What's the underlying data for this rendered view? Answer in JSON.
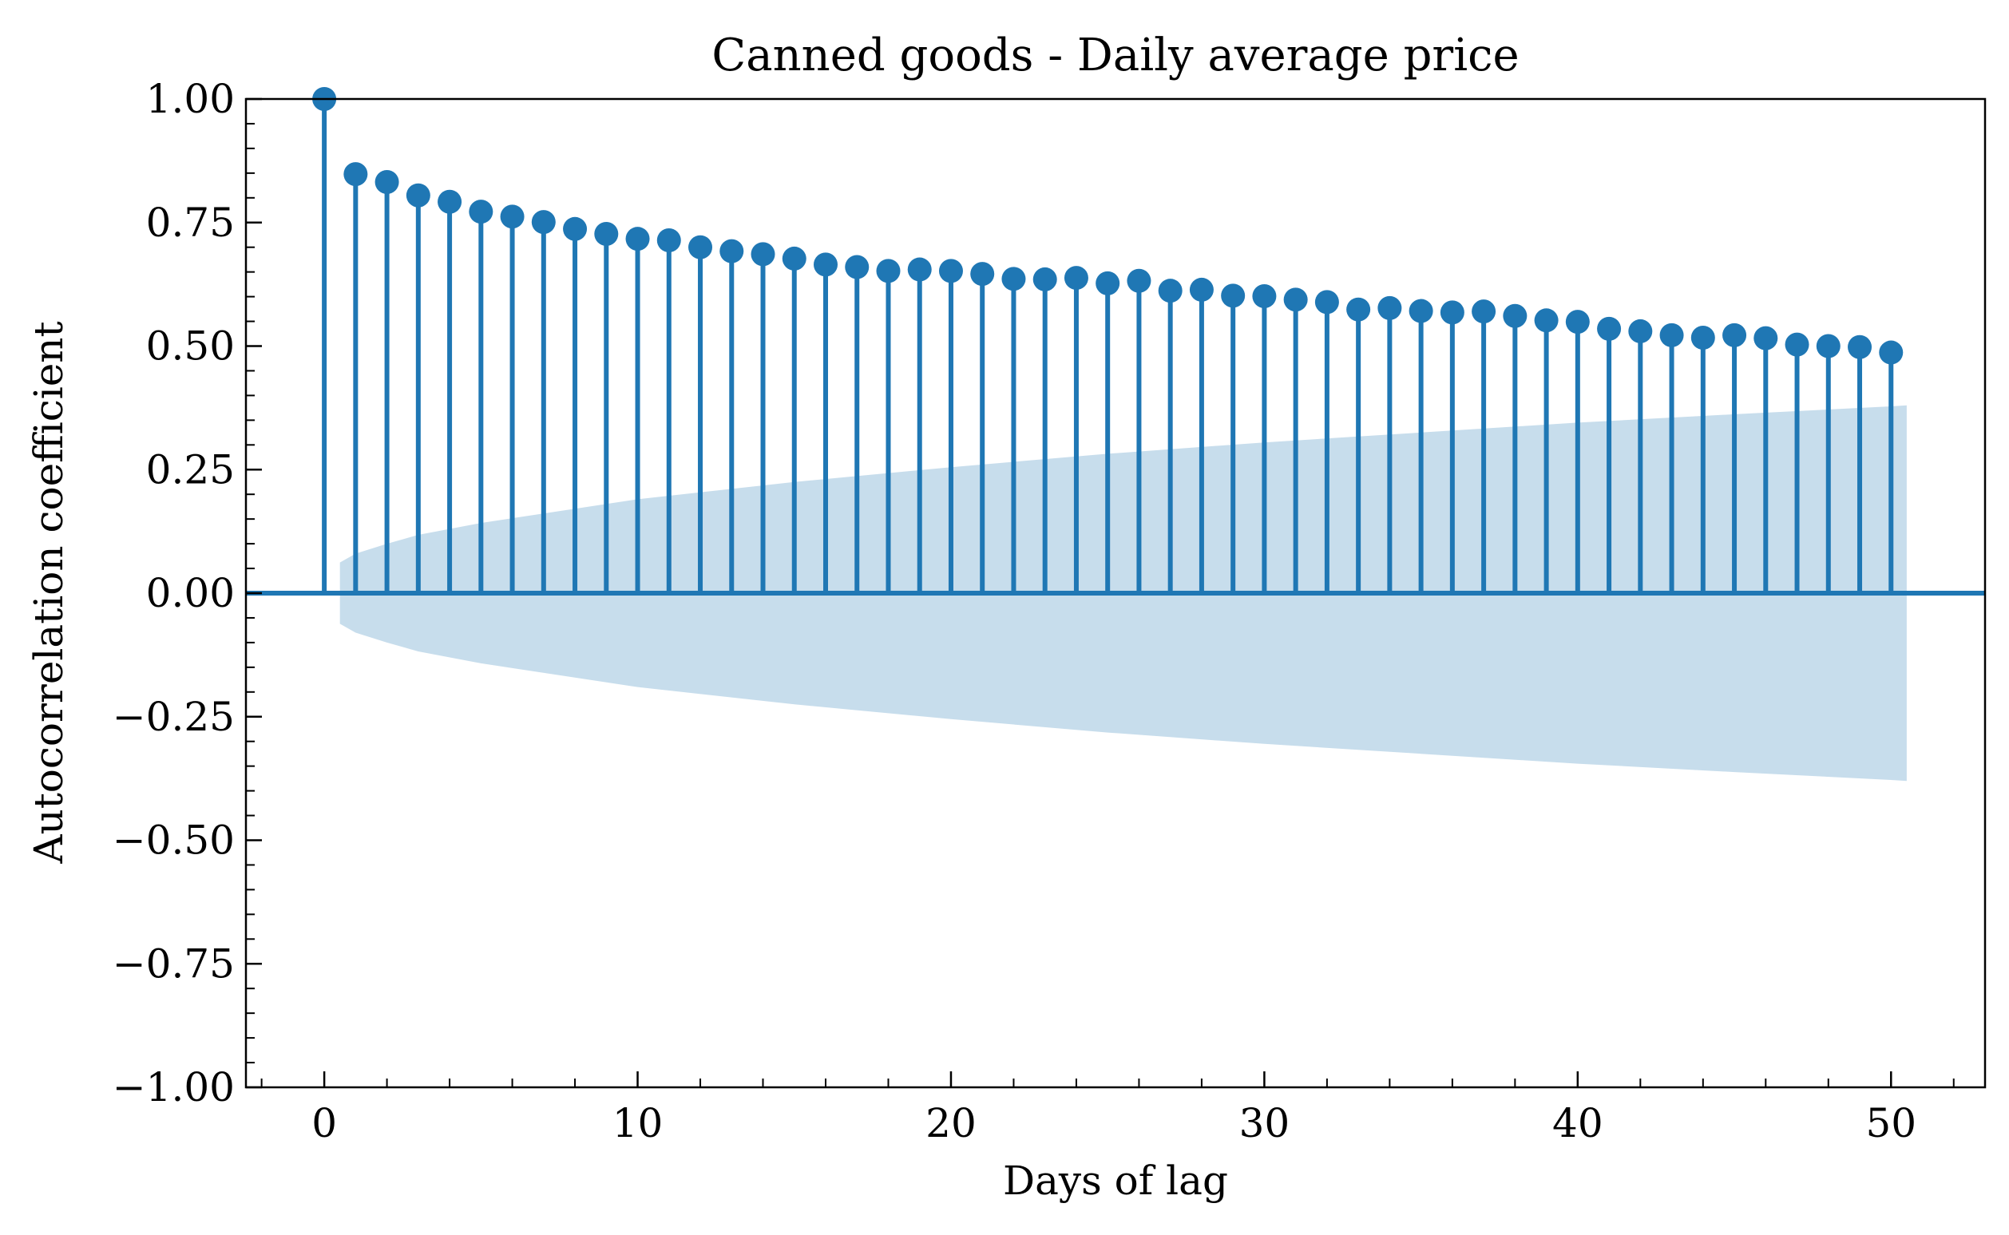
{
  "chart_data": {
    "type": "stem",
    "title": "Canned goods - Daily average price",
    "xlabel": "Days of lag",
    "ylabel": "Autocorrelation coefficient",
    "xlim": [
      -2.5,
      53
    ],
    "ylim": [
      -1.0,
      1.0
    ],
    "xticks": [
      0,
      10,
      20,
      30,
      40,
      50
    ],
    "xtick_labels": [
      "0",
      "10",
      "20",
      "30",
      "40",
      "50"
    ],
    "yticks": [
      -1.0,
      -0.75,
      -0.5,
      -0.25,
      0.0,
      0.25,
      0.5,
      0.75,
      1.0
    ],
    "ytick_labels": [
      "−1.00",
      "−0.75",
      "−0.50",
      "−0.25",
      "0.00",
      "0.25",
      "0.50",
      "0.75",
      "1.00"
    ],
    "grid": false,
    "lags": [
      0,
      1,
      2,
      3,
      4,
      5,
      6,
      7,
      8,
      9,
      10,
      11,
      12,
      13,
      14,
      15,
      16,
      17,
      18,
      19,
      20,
      21,
      22,
      23,
      24,
      25,
      26,
      27,
      28,
      29,
      30,
      31,
      32,
      33,
      34,
      35,
      36,
      37,
      38,
      39,
      40,
      41,
      42,
      43,
      44,
      45,
      46,
      47,
      48,
      49,
      50
    ],
    "acf": [
      1.0,
      0.848,
      0.832,
      0.805,
      0.792,
      0.772,
      0.762,
      0.751,
      0.737,
      0.727,
      0.717,
      0.714,
      0.7,
      0.692,
      0.686,
      0.677,
      0.665,
      0.66,
      0.652,
      0.655,
      0.652,
      0.646,
      0.636,
      0.635,
      0.638,
      0.627,
      0.632,
      0.612,
      0.614,
      0.602,
      0.601,
      0.594,
      0.589,
      0.574,
      0.577,
      0.571,
      0.568,
      0.57,
      0.561,
      0.552,
      0.549,
      0.535,
      0.53,
      0.522,
      0.517,
      0.522,
      0.516,
      0.503,
      0.5,
      0.498,
      0.487
    ],
    "confidence_band": {
      "x": [
        0.5,
        1,
        2,
        3,
        5,
        10,
        15,
        20,
        25,
        30,
        35,
        40,
        45,
        50,
        50.5
      ],
      "upper": [
        0.062,
        0.08,
        0.1,
        0.118,
        0.142,
        0.19,
        0.225,
        0.255,
        0.282,
        0.305,
        0.325,
        0.345,
        0.362,
        0.378,
        0.38
      ],
      "lower": [
        -0.062,
        -0.08,
        -0.1,
        -0.118,
        -0.142,
        -0.19,
        -0.225,
        -0.255,
        -0.282,
        -0.305,
        -0.325,
        -0.345,
        -0.362,
        -0.378,
        -0.38
      ]
    },
    "colors": {
      "stem": "#1f77b4",
      "band": "#1f77b4",
      "band_opacity": 0.25
    }
  }
}
